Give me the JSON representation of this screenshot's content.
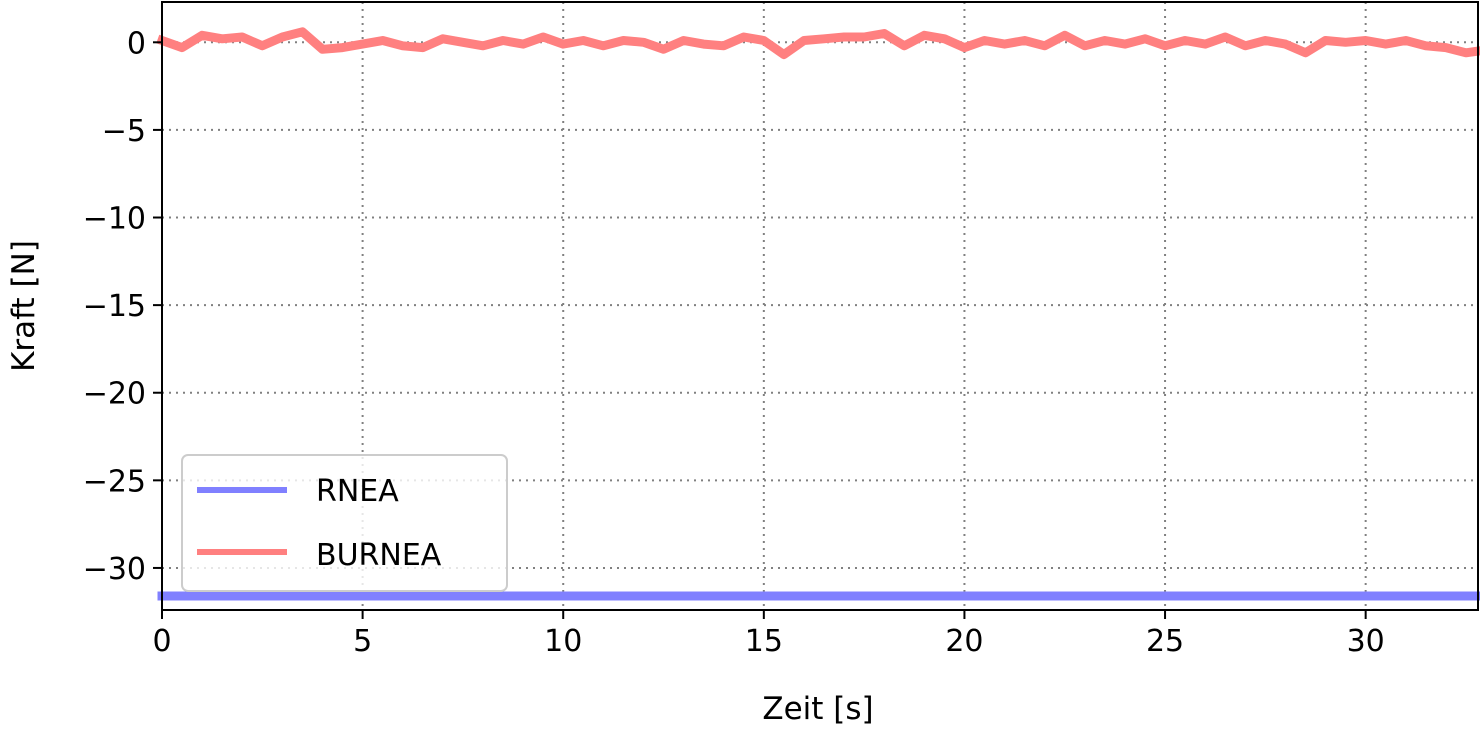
{
  "chart_data": {
    "type": "line",
    "title": "",
    "xlabel": "Zeit [s]",
    "ylabel": "Kraft [N]",
    "xlim": [
      0,
      32.8
    ],
    "ylim": [
      -32.4,
      2.3
    ],
    "xticks": [
      0,
      5,
      10,
      15,
      20,
      25,
      30
    ],
    "xtick_labels": [
      "0",
      "5",
      "10",
      "15",
      "20",
      "25",
      "30"
    ],
    "yticks": [
      0,
      -5,
      -10,
      -15,
      -20,
      -25,
      -30
    ],
    "ytick_labels": [
      "0",
      "−5",
      "−10",
      "−15",
      "−20",
      "−25",
      "−30"
    ],
    "grid": true,
    "legend_position": "lower-left",
    "series": [
      {
        "name": "RNEA",
        "color": "#8080ff",
        "x": [
          0,
          32.8
        ],
        "y": [
          -31.6,
          -31.6
        ]
      },
      {
        "name": "BURNEA",
        "color": "#ff8080",
        "x": [
          0,
          0.5,
          1,
          1.5,
          2,
          2.5,
          3,
          3.5,
          4,
          4.5,
          5,
          5.5,
          6,
          6.5,
          7,
          7.5,
          8,
          8.5,
          9,
          9.5,
          10,
          10.5,
          11,
          11.5,
          12,
          12.5,
          13,
          13.5,
          14,
          14.5,
          15,
          15.5,
          16,
          16.5,
          17,
          17.5,
          18,
          18.5,
          19,
          19.5,
          20,
          20.5,
          21,
          21.5,
          22,
          22.5,
          23,
          23.5,
          24,
          24.5,
          25,
          25.5,
          26,
          26.5,
          27,
          27.5,
          28,
          28.5,
          29,
          29.5,
          30,
          30.5,
          31,
          31.5,
          32,
          32.5,
          32.8
        ],
        "y": [
          0.1,
          -0.3,
          0.4,
          0.2,
          0.3,
          -0.2,
          0.3,
          0.6,
          -0.4,
          -0.3,
          -0.1,
          0.1,
          -0.2,
          -0.3,
          0.2,
          0,
          -0.2,
          0.1,
          -0.1,
          0.3,
          -0.1,
          0.1,
          -0.2,
          0.1,
          0,
          -0.4,
          0.1,
          -0.1,
          -0.2,
          0.3,
          0.1,
          -0.7,
          0.1,
          0.2,
          0.3,
          0.3,
          0.5,
          -0.2,
          0.4,
          0.2,
          -0.3,
          0.1,
          -0.1,
          0.1,
          -0.2,
          0.4,
          -0.2,
          0.1,
          -0.1,
          0.2,
          -0.2,
          0.1,
          -0.1,
          0.3,
          -0.2,
          0.1,
          -0.1,
          -0.6,
          0.1,
          0,
          0.1,
          -0.1,
          0.1,
          -0.2,
          -0.3,
          -0.6,
          -0.5
        ]
      }
    ]
  }
}
